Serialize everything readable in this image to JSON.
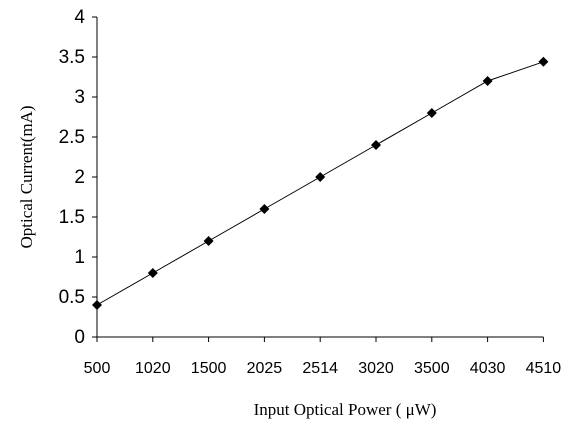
{
  "chart_data": {
    "type": "line",
    "title": "",
    "xlabel": "Input Optical Power ( μW)",
    "ylabel": "Optical Current(mA)",
    "categories": [
      "500",
      "1020",
      "1500",
      "2025",
      "2514",
      "3020",
      "3500",
      "4030",
      "4510"
    ],
    "y_ticks": [
      "0",
      "0.5",
      "1",
      "1.5",
      "2",
      "2.5",
      "3",
      "3.5",
      "4"
    ],
    "ylim": [
      0,
      4
    ],
    "grid": false,
    "legend": "none",
    "series": [
      {
        "values": [
          0.4,
          0.8,
          1.2,
          1.6,
          2.0,
          2.4,
          2.8,
          3.2,
          3.44
        ],
        "color": "#000000",
        "marker": "diamond"
      }
    ]
  }
}
